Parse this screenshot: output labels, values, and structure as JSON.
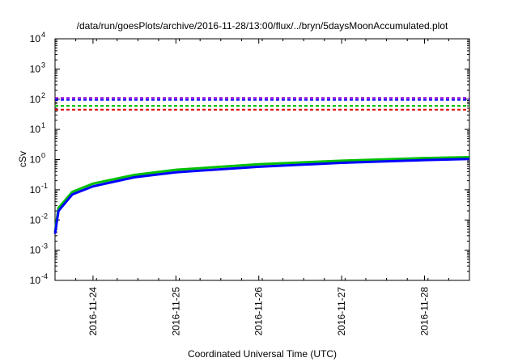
{
  "chart_data": {
    "type": "line",
    "title": "/data/run/goesPlots/archive/2016-11-28/13:00/flux/../bryn/5daysMoonAccumulated.plot",
    "xlabel": "Coordinated Universal Time (UTC)",
    "ylabel": "cSv",
    "yscale": "log",
    "ylim": [
      0.0001,
      10000
    ],
    "y_ticks": [
      {
        "base": "10",
        "exp": "-4",
        "value": 0.0001
      },
      {
        "base": "10",
        "exp": "-3",
        "value": 0.001
      },
      {
        "base": "10",
        "exp": "-2",
        "value": 0.01
      },
      {
        "base": "10",
        "exp": "-1",
        "value": 0.1
      },
      {
        "base": "10",
        "exp": "0",
        "value": 1
      },
      {
        "base": "10",
        "exp": "1",
        "value": 10
      },
      {
        "base": "10",
        "exp": "2",
        "value": 100
      },
      {
        "base": "10",
        "exp": "3",
        "value": 1000
      },
      {
        "base": "10",
        "exp": "4",
        "value": 10000
      }
    ],
    "xlim": [
      "2016-11-23 13:00",
      "2016-11-28 13:00"
    ],
    "x_ticks": [
      "2016-11-24",
      "2016-11-25",
      "2016-11-26",
      "2016-11-27",
      "2016-11-28"
    ],
    "grid": false,
    "series": [
      {
        "style": "dashed",
        "color": "#9400d3",
        "y_constant": 110
      },
      {
        "style": "dashed",
        "color": "#0000ff",
        "y_constant": 95
      },
      {
        "style": "dashed",
        "color": "#00c000",
        "y_constant": 60
      },
      {
        "style": "dashed",
        "color": "#e00000",
        "y_constant": 45
      },
      {
        "style": "solid",
        "color": "#00c000",
        "x": [
          "2016-11-23 13:00",
          "2016-11-23 14:00",
          "2016-11-23 18:00",
          "2016-11-24 00:00",
          "2016-11-24 12:00",
          "2016-11-25 00:00",
          "2016-11-26 00:00",
          "2016-11-27 00:00",
          "2016-11-28 00:00",
          "2016-11-28 13:00"
        ],
        "y": [
          0.004,
          0.025,
          0.085,
          0.16,
          0.31,
          0.46,
          0.7,
          0.92,
          1.12,
          1.2
        ]
      },
      {
        "style": "solid",
        "color": "#0000ff",
        "x": [
          "2016-11-23 13:00",
          "2016-11-23 14:00",
          "2016-11-23 18:00",
          "2016-11-24 00:00",
          "2016-11-24 12:00",
          "2016-11-25 00:00",
          "2016-11-26 00:00",
          "2016-11-27 00:00",
          "2016-11-28 00:00",
          "2016-11-28 13:00"
        ],
        "y": [
          0.0035,
          0.02,
          0.07,
          0.13,
          0.26,
          0.38,
          0.58,
          0.78,
          0.96,
          1.05
        ]
      }
    ]
  }
}
